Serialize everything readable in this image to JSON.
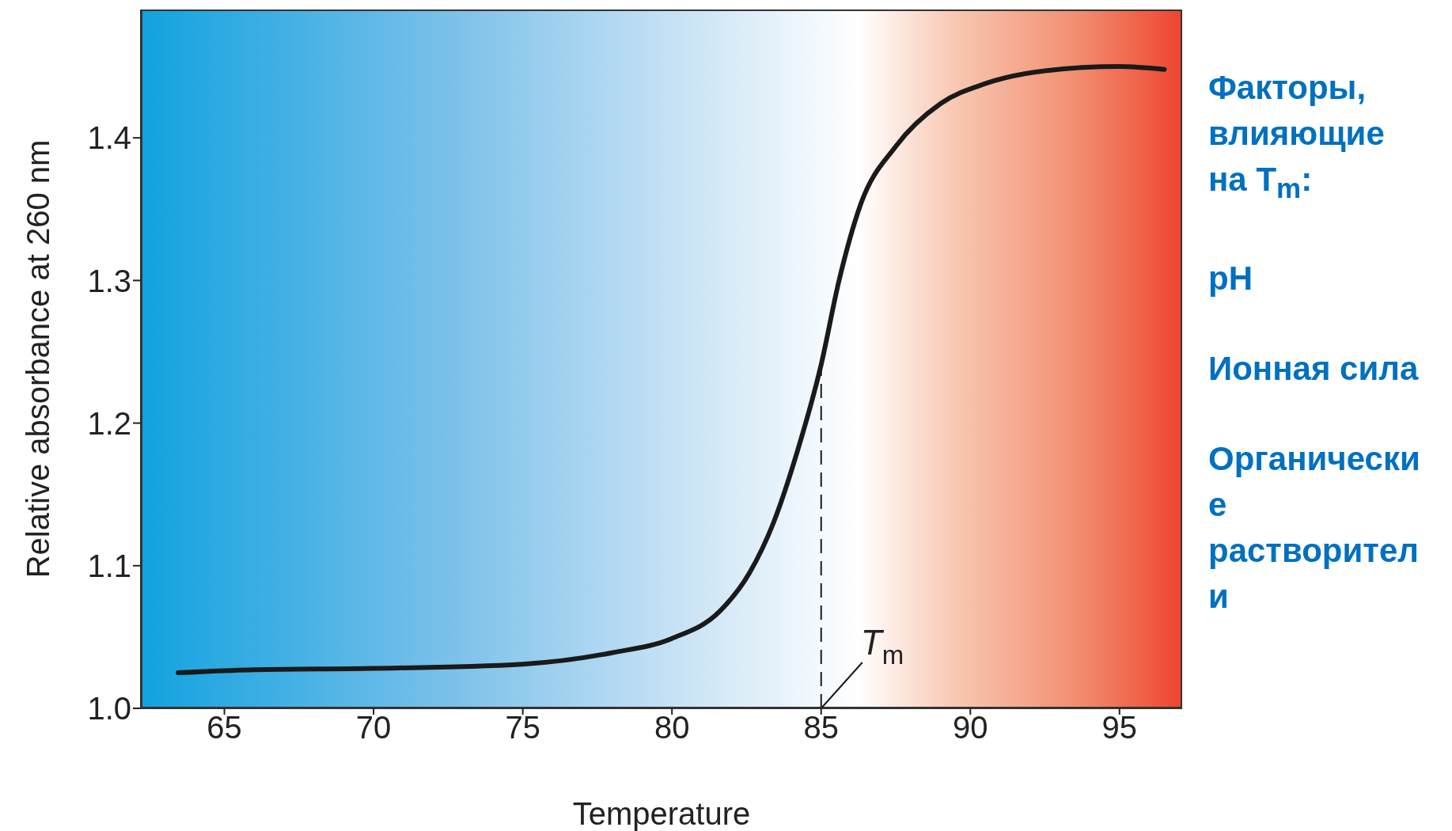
{
  "chart_data": {
    "type": "line",
    "xlabel": "Temperature",
    "ylabel": "Relative absorbance at 260 nm",
    "xlim": [
      62.2,
      97.1
    ],
    "xticks": [
      65,
      70,
      75,
      80,
      85,
      90,
      95
    ],
    "ylim": [
      1.0,
      1.49
    ],
    "yticks": [
      {
        "value": 1.0,
        "label": "1.0"
      },
      1.1,
      1.2,
      1.3,
      1.4
    ],
    "grid": false,
    "marker": "none",
    "line_style": "solid",
    "series": [
      {
        "color": "#1a1a1a",
        "x": [
          63.45,
          66,
          70,
          75,
          78,
          80,
          81.6,
          82.6,
          83.4,
          84.2,
          85,
          85.6,
          86.3,
          87.5,
          89,
          90.5,
          92.5,
          95,
          96.5
        ],
        "values": [
          1.025,
          1.027,
          1.028,
          1.031,
          1.039,
          1.049,
          1.068,
          1.095,
          1.13,
          1.18,
          1.241,
          1.3,
          1.352,
          1.394,
          1.424,
          1.438,
          1.447,
          1.45,
          1.448
        ]
      }
    ],
    "ref_lines": [
      {
        "axis": "x",
        "value": 85,
        "label": "T$_{m}$",
        "color": "#1a1a1a",
        "line_style": "dashed"
      }
    ],
    "annotations": [
      "Факторы, влияющие на T$_{m}$:",
      "pH",
      "Ионная сила",
      "Органические растворители"
    ]
  }
}
